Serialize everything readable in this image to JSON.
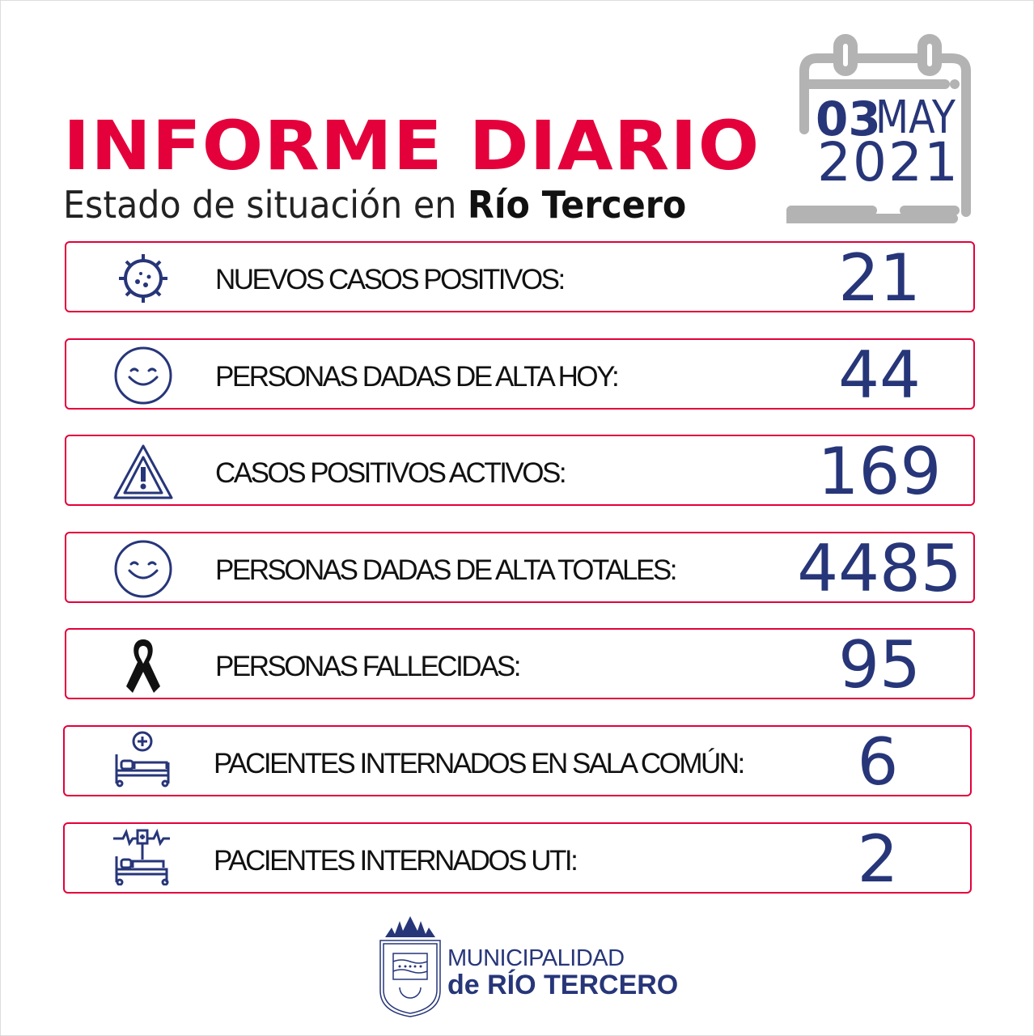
{
  "header": {
    "title": "INFORME DIARIO",
    "subtitle_prefix": "Estado de situación en ",
    "subtitle_city": "Río Tercero"
  },
  "date": {
    "day": "03",
    "month": "MAY",
    "year": "2021"
  },
  "colors": {
    "accent": "#e4003b",
    "navy": "#273679",
    "calendar": "#b3b3b3"
  },
  "stats": [
    {
      "icon": "virus-icon",
      "label": "NUEVOS CASOS POSITIVOS:",
      "value": "21"
    },
    {
      "icon": "smiley-icon",
      "label": "PERSONAS DADAS DE ALTA HOY:",
      "value": "44"
    },
    {
      "icon": "warning-icon",
      "label": "CASOS POSITIVOS ACTIVOS:",
      "value": "169"
    },
    {
      "icon": "smiley-icon",
      "label": "PERSONAS DADAS DE ALTA TOTALES:",
      "value": "4485"
    },
    {
      "icon": "mourning-ribbon-icon",
      "label": "PERSONAS FALLECIDAS:",
      "value": "95"
    },
    {
      "icon": "hospital-bed-icon",
      "label": "PACIENTES INTERNADOS EN SALA COMÚN:",
      "value": "6"
    },
    {
      "icon": "icu-bed-icon",
      "label": "PACIENTES INTERNADOS UTI:",
      "value": "2"
    }
  ],
  "footer": {
    "line1": "MUNICIPALIDAD",
    "line2": "de RÍO TERCERO"
  }
}
